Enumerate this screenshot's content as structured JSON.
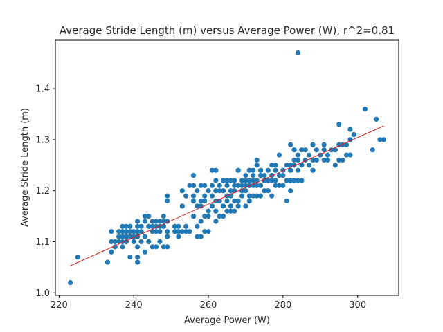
{
  "chart_data": {
    "type": "scatter",
    "title": "Average Stride Length (m) versus Average Power (W), r^2=0.81",
    "xlabel": "Average Power (W)",
    "ylabel": "Average Stride Length (m)",
    "xlim": [
      219,
      311
    ],
    "ylim": [
      0.995,
      1.495
    ],
    "xticks": [
      220,
      240,
      260,
      280,
      300
    ],
    "xtick_labels": [
      "220",
      "240",
      "260",
      "280",
      "300"
    ],
    "yticks": [
      1.0,
      1.1,
      1.2,
      1.3,
      1.4
    ],
    "ytick_labels": [
      "1.0",
      "1.1",
      "1.2",
      "1.3",
      "1.4"
    ],
    "grid": false,
    "point_color": "#1f77b4",
    "fit_color": "#e31a1c",
    "fit_line": {
      "x": [
        223,
        307
      ],
      "y": [
        1.053,
        1.327
      ]
    },
    "series": [
      {
        "points": [
          [
            223,
            1.02
          ],
          [
            225,
            1.07
          ],
          [
            233,
            1.06
          ],
          [
            234,
            1.08
          ],
          [
            234,
            1.1
          ],
          [
            234,
            1.12
          ],
          [
            235,
            1.09
          ],
          [
            235,
            1.1
          ],
          [
            236,
            1.1
          ],
          [
            236,
            1.11
          ],
          [
            236,
            1.12
          ],
          [
            237,
            1.09
          ],
          [
            237,
            1.1
          ],
          [
            237,
            1.11
          ],
          [
            237,
            1.12
          ],
          [
            237,
            1.13
          ],
          [
            238,
            1.1
          ],
          [
            238,
            1.11
          ],
          [
            238,
            1.12
          ],
          [
            238,
            1.13
          ],
          [
            239,
            1.07
          ],
          [
            239,
            1.11
          ],
          [
            239,
            1.12
          ],
          [
            239,
            1.13
          ],
          [
            240,
            1.1
          ],
          [
            240,
            1.11
          ],
          [
            240,
            1.12
          ],
          [
            241,
            1.06
          ],
          [
            241,
            1.07
          ],
          [
            241,
            1.09
          ],
          [
            241,
            1.11
          ],
          [
            241,
            1.12
          ],
          [
            241,
            1.13
          ],
          [
            241,
            1.14
          ],
          [
            242,
            1.1
          ],
          [
            242,
            1.12
          ],
          [
            242,
            1.13
          ],
          [
            243,
            1.08
          ],
          [
            243,
            1.11
          ],
          [
            243,
            1.14
          ],
          [
            243,
            1.15
          ],
          [
            244,
            1.1
          ],
          [
            244,
            1.13
          ],
          [
            244,
            1.15
          ],
          [
            245,
            1.09
          ],
          [
            245,
            1.12
          ],
          [
            245,
            1.13
          ],
          [
            245,
            1.14
          ],
          [
            246,
            1.09
          ],
          [
            246,
            1.12
          ],
          [
            246,
            1.13
          ],
          [
            246,
            1.14
          ],
          [
            247,
            1.1
          ],
          [
            247,
            1.12
          ],
          [
            247,
            1.13
          ],
          [
            247,
            1.14
          ],
          [
            248,
            1.09
          ],
          [
            248,
            1.13
          ],
          [
            248,
            1.14
          ],
          [
            248,
            1.15
          ],
          [
            249,
            1.09
          ],
          [
            249,
            1.11
          ],
          [
            249,
            1.12
          ],
          [
            249,
            1.14
          ],
          [
            249,
            1.18
          ],
          [
            249,
            1.19
          ],
          [
            251,
            1.12
          ],
          [
            251,
            1.13
          ],
          [
            252,
            1.11
          ],
          [
            252,
            1.12
          ],
          [
            252,
            1.13
          ],
          [
            253,
            1.12
          ],
          [
            253,
            1.17
          ],
          [
            253,
            1.2
          ],
          [
            254,
            1.12
          ],
          [
            254,
            1.13
          ],
          [
            254,
            1.19
          ],
          [
            255,
            1.12
          ],
          [
            255,
            1.21
          ],
          [
            256,
            1.15
          ],
          [
            256,
            1.18
          ],
          [
            256,
            1.19
          ],
          [
            256,
            1.21
          ],
          [
            256,
            1.23
          ],
          [
            257,
            1.11
          ],
          [
            257,
            1.13
          ],
          [
            257,
            1.17
          ],
          [
            257,
            1.2
          ],
          [
            258,
            1.11
          ],
          [
            258,
            1.14
          ],
          [
            258,
            1.17
          ],
          [
            258,
            1.18
          ],
          [
            258,
            1.21
          ],
          [
            259,
            1.12
          ],
          [
            259,
            1.15
          ],
          [
            259,
            1.18
          ],
          [
            259,
            1.19
          ],
          [
            259,
            1.21
          ],
          [
            260,
            1.12
          ],
          [
            260,
            1.15
          ],
          [
            260,
            1.16
          ],
          [
            260,
            1.2
          ],
          [
            261,
            1.17
          ],
          [
            261,
            1.19
          ],
          [
            261,
            1.21
          ],
          [
            261,
            1.24
          ],
          [
            262,
            1.14
          ],
          [
            262,
            1.16
          ],
          [
            262,
            1.18
          ],
          [
            262,
            1.2
          ],
          [
            262,
            1.22
          ],
          [
            262,
            1.24
          ],
          [
            263,
            1.15
          ],
          [
            263,
            1.18
          ],
          [
            263,
            1.2
          ],
          [
            263,
            1.21
          ],
          [
            264,
            1.15
          ],
          [
            264,
            1.17
          ],
          [
            264,
            1.2
          ],
          [
            264,
            1.22
          ],
          [
            265,
            1.16
          ],
          [
            265,
            1.18
          ],
          [
            265,
            1.19
          ],
          [
            265,
            1.21
          ],
          [
            265,
            1.22
          ],
          [
            266,
            1.16
          ],
          [
            266,
            1.17
          ],
          [
            266,
            1.19
          ],
          [
            266,
            1.2
          ],
          [
            266,
            1.22
          ],
          [
            267,
            1.16
          ],
          [
            267,
            1.18
          ],
          [
            267,
            1.2
          ],
          [
            267,
            1.21
          ],
          [
            267,
            1.22
          ],
          [
            268,
            1.17
          ],
          [
            268,
            1.18
          ],
          [
            268,
            1.21
          ],
          [
            268,
            1.24
          ],
          [
            269,
            1.19
          ],
          [
            269,
            1.2
          ],
          [
            269,
            1.21
          ],
          [
            269,
            1.22
          ],
          [
            270,
            1.17
          ],
          [
            270,
            1.2
          ],
          [
            270,
            1.21
          ],
          [
            270,
            1.22
          ],
          [
            270,
            1.23
          ],
          [
            271,
            1.18
          ],
          [
            271,
            1.19
          ],
          [
            271,
            1.21
          ],
          [
            271,
            1.22
          ],
          [
            271,
            1.24
          ],
          [
            272,
            1.19
          ],
          [
            272,
            1.21
          ],
          [
            272,
            1.22
          ],
          [
            272,
            1.23
          ],
          [
            272,
            1.24
          ],
          [
            273,
            1.19
          ],
          [
            273,
            1.21
          ],
          [
            273,
            1.22
          ],
          [
            273,
            1.25
          ],
          [
            273,
            1.26
          ],
          [
            274,
            1.19
          ],
          [
            274,
            1.21
          ],
          [
            274,
            1.23
          ],
          [
            274,
            1.24
          ],
          [
            275,
            1.2
          ],
          [
            275,
            1.22
          ],
          [
            275,
            1.23
          ],
          [
            276,
            1.2
          ],
          [
            276,
            1.22
          ],
          [
            276,
            1.24
          ],
          [
            277,
            1.19
          ],
          [
            277,
            1.22
          ],
          [
            277,
            1.23
          ],
          [
            277,
            1.25
          ],
          [
            278,
            1.21
          ],
          [
            278,
            1.22
          ],
          [
            278,
            1.24
          ],
          [
            278,
            1.25
          ],
          [
            279,
            1.21
          ],
          [
            279,
            1.23
          ],
          [
            279,
            1.27
          ],
          [
            280,
            1.21
          ],
          [
            280,
            1.23
          ],
          [
            280,
            1.24
          ],
          [
            281,
            1.18
          ],
          [
            281,
            1.22
          ],
          [
            281,
            1.25
          ],
          [
            282,
            1.2
          ],
          [
            282,
            1.22
          ],
          [
            282,
            1.24
          ],
          [
            282,
            1.25
          ],
          [
            282,
            1.29
          ],
          [
            283,
            1.22
          ],
          [
            283,
            1.25
          ],
          [
            283,
            1.26
          ],
          [
            283,
            1.28
          ],
          [
            284,
            1.22
          ],
          [
            284,
            1.24
          ],
          [
            284,
            1.26
          ],
          [
            284,
            1.27
          ],
          [
            284,
            1.47
          ],
          [
            285,
            1.22
          ],
          [
            285,
            1.25
          ],
          [
            285,
            1.28
          ],
          [
            286,
            1.26
          ],
          [
            286,
            1.28
          ],
          [
            287,
            1.25
          ],
          [
            287,
            1.27
          ],
          [
            288,
            1.24
          ],
          [
            288,
            1.26
          ],
          [
            288,
            1.29
          ],
          [
            289,
            1.26
          ],
          [
            289,
            1.28
          ],
          [
            290,
            1.27
          ],
          [
            291,
            1.26
          ],
          [
            291,
            1.28
          ],
          [
            291,
            1.29
          ],
          [
            292,
            1.26
          ],
          [
            292,
            1.27
          ],
          [
            293,
            1.28
          ],
          [
            294,
            1.25
          ],
          [
            294,
            1.28
          ],
          [
            295,
            1.26
          ],
          [
            295,
            1.29
          ],
          [
            295,
            1.33
          ],
          [
            296,
            1.26
          ],
          [
            296,
            1.29
          ],
          [
            297,
            1.27
          ],
          [
            297,
            1.29
          ],
          [
            298,
            1.27
          ],
          [
            298,
            1.3
          ],
          [
            298,
            1.32
          ],
          [
            299,
            1.31
          ],
          [
            302,
            1.36
          ],
          [
            304,
            1.28
          ],
          [
            305,
            1.34
          ],
          [
            306,
            1.3
          ],
          [
            307,
            1.3
          ]
        ]
      }
    ]
  }
}
